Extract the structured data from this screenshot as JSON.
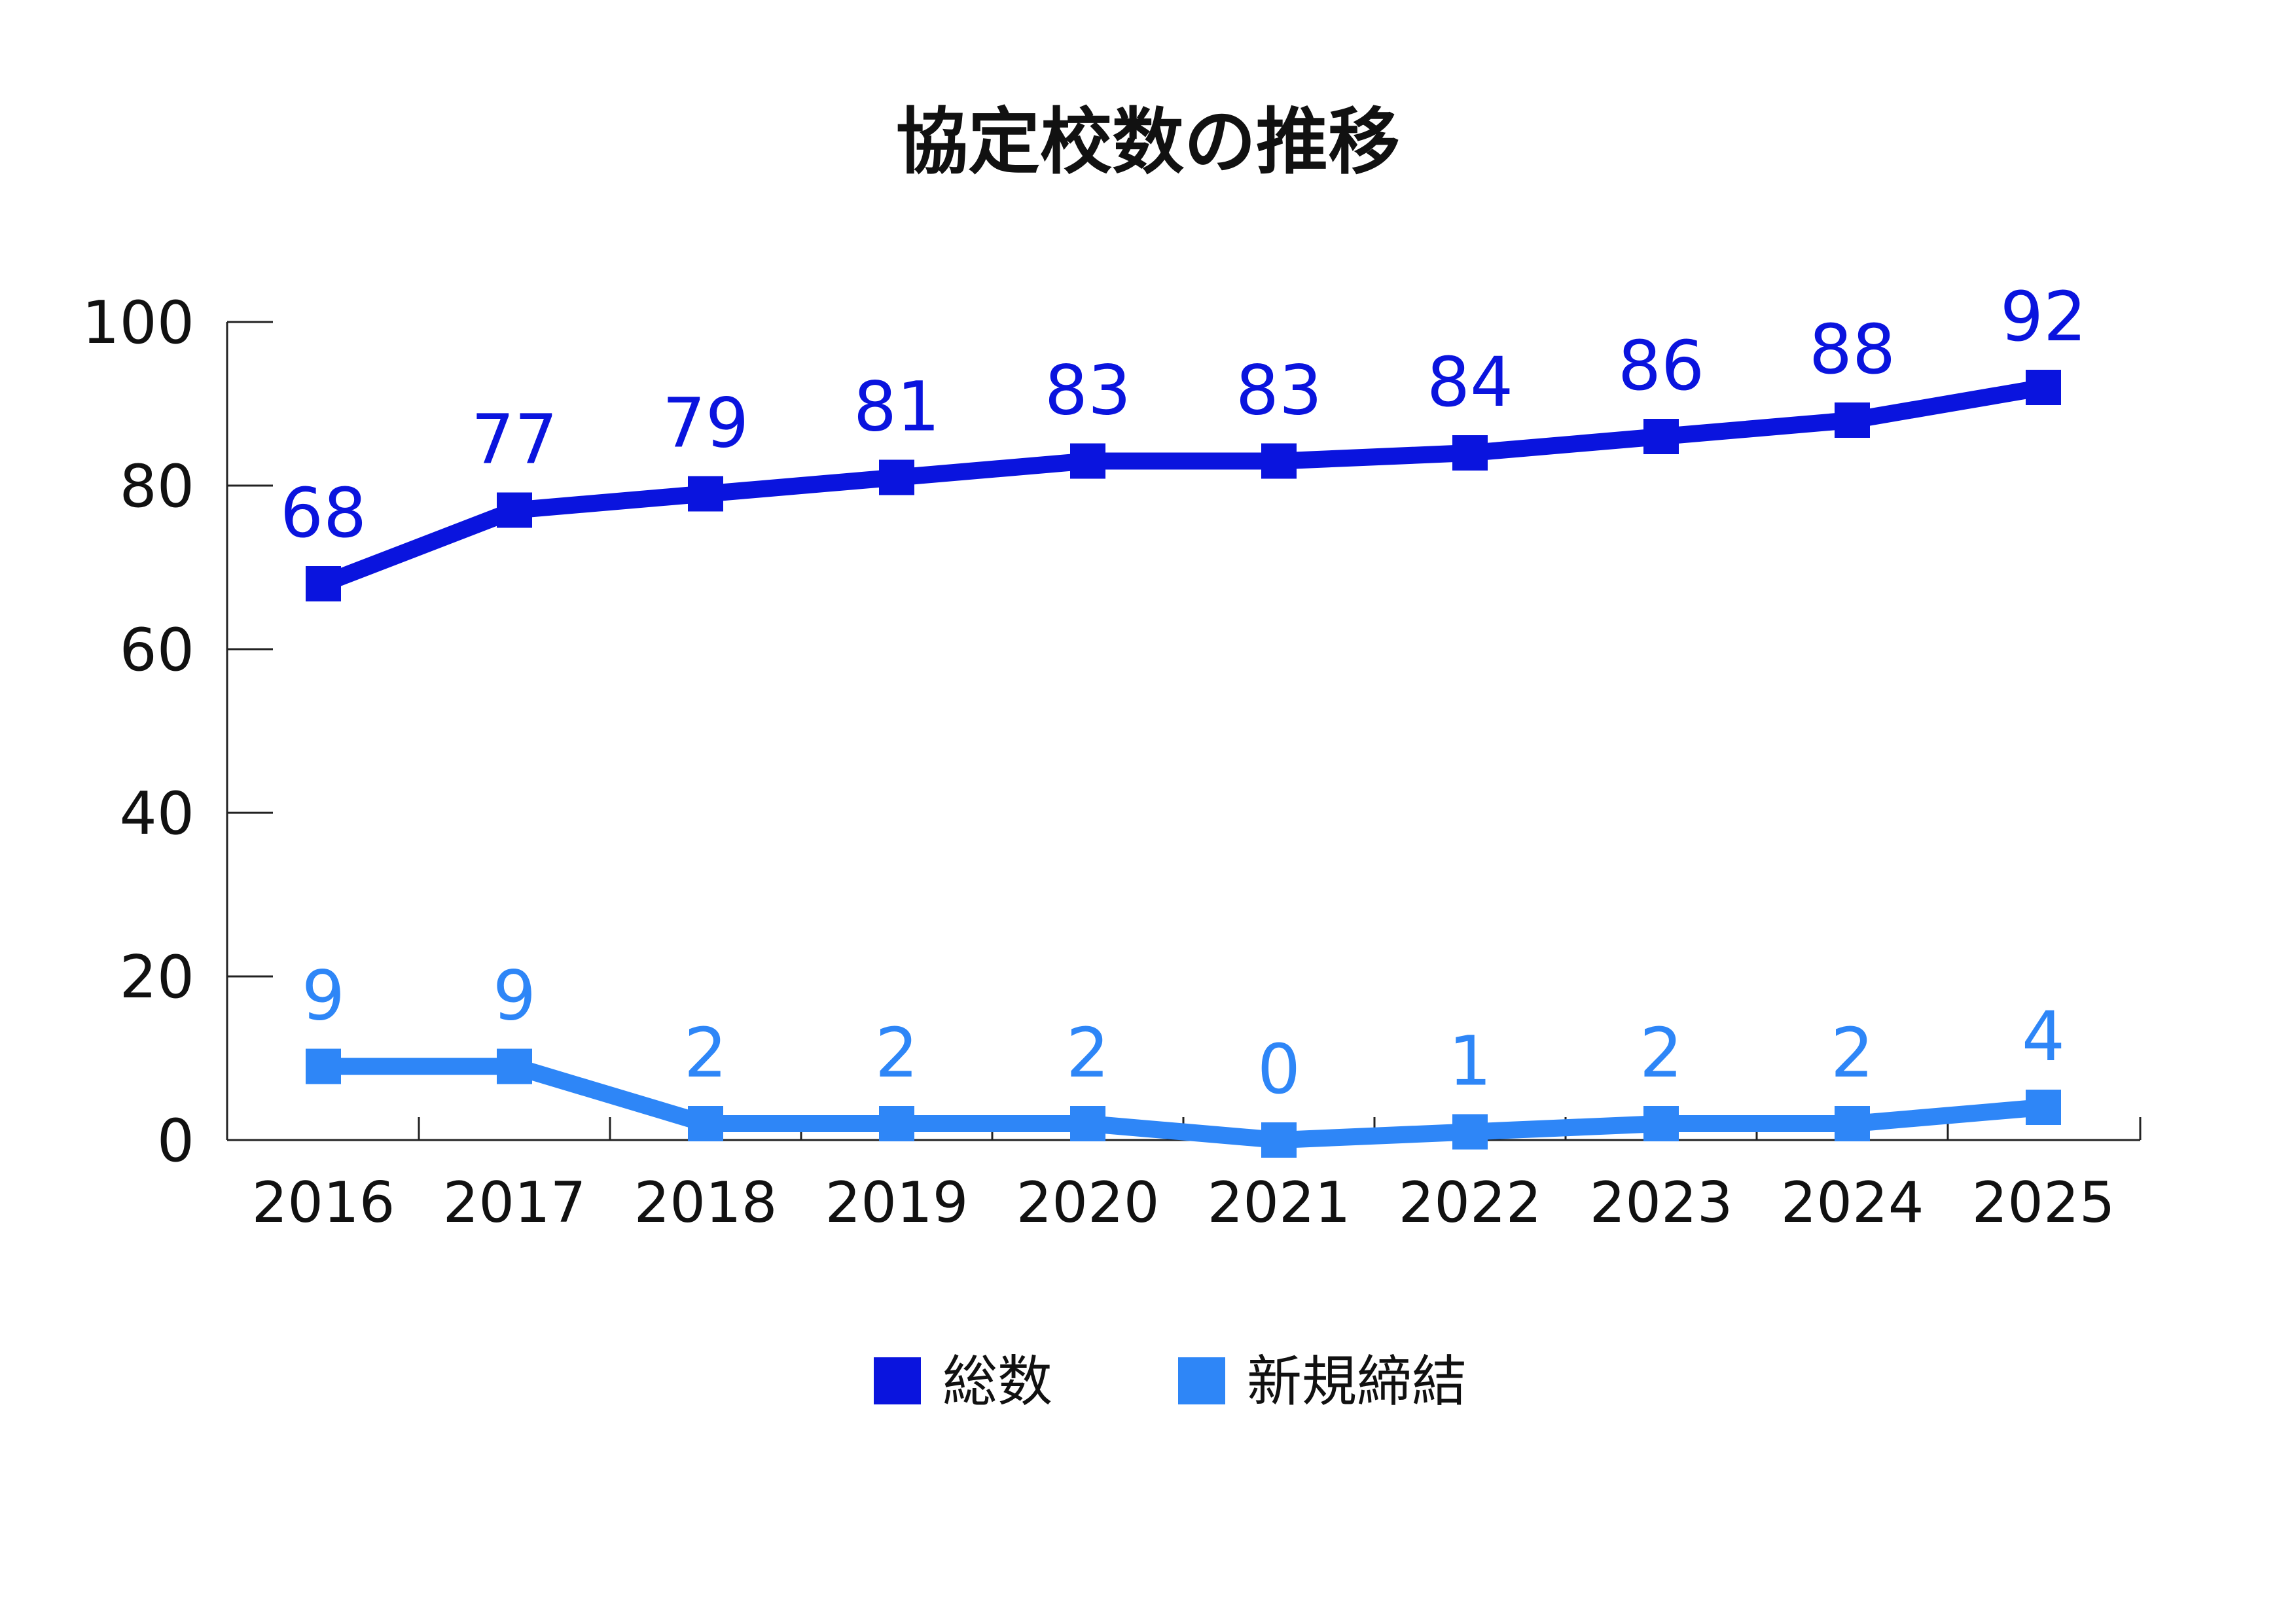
{
  "chart_data": {
    "type": "line",
    "title": "協定校数の推移",
    "categories": [
      "2016",
      "2017",
      "2018",
      "2019",
      "2020",
      "2021",
      "2022",
      "2023",
      "2024",
      "2025"
    ],
    "yticks": [
      "0",
      "20",
      "40",
      "60",
      "80",
      "100"
    ],
    "ylim": [
      0,
      100
    ],
    "grid": false,
    "legend_position": "bottom",
    "series": [
      {
        "name": "総数",
        "color": "#0a14de",
        "values": [
          68,
          77,
          79,
          81,
          83,
          83,
          84,
          86,
          88,
          92
        ]
      },
      {
        "name": "新規締結",
        "color": "#2e86f7",
        "values": [
          9,
          9,
          2,
          2,
          2,
          0,
          1,
          2,
          2,
          4
        ]
      }
    ]
  }
}
